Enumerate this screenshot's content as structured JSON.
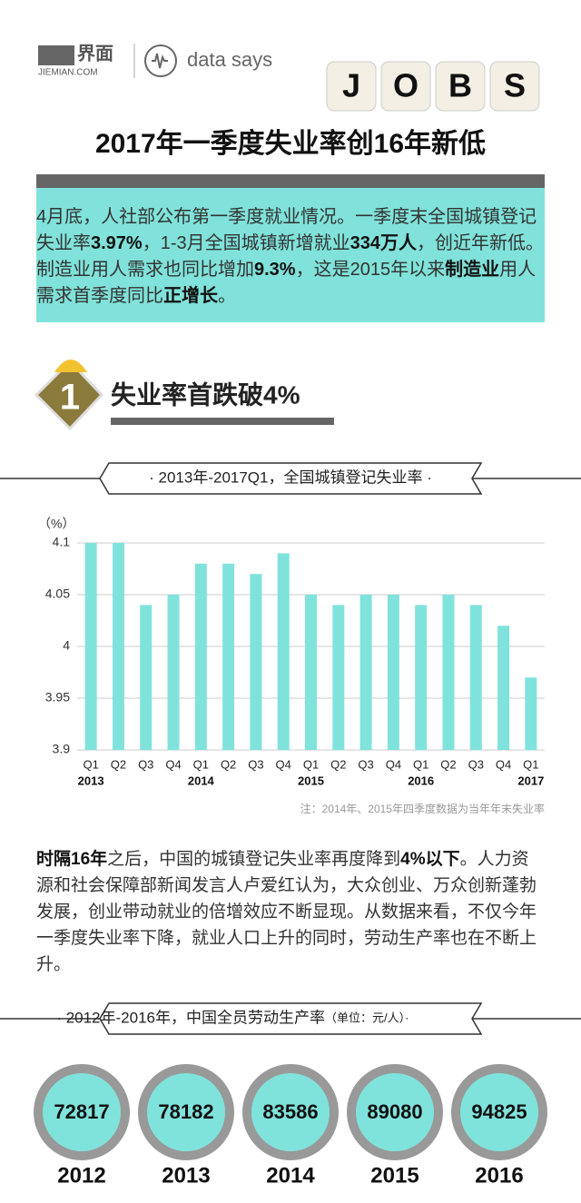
{
  "header": {
    "logo_cn": "界面",
    "logo_en": "JIEMIAN.COM",
    "tagline": "data says",
    "jobs_letters": [
      "J",
      "O",
      "B",
      "S"
    ]
  },
  "title": "2017年一季度失业率创16年新低",
  "intro": [
    {
      "text": "4月底，人社部公布第一季度就业情况。一季度末全国城镇登记失业率",
      "bold": false
    },
    {
      "text": "3.97%",
      "bold": true
    },
    {
      "text": "，1-3月全国城镇新增就业",
      "bold": false
    },
    {
      "text": "334万人",
      "bold": true
    },
    {
      "text": "，创近年新低。制造业用人需求也同比增加",
      "bold": false
    },
    {
      "text": "9.3%",
      "bold": true
    },
    {
      "text": "，这是2015年以来",
      "bold": false
    },
    {
      "text": "制造业",
      "bold": true
    },
    {
      "text": "用人需求首季度同比",
      "bold": false
    },
    {
      "text": "正增长",
      "bold": true
    },
    {
      "text": "。",
      "bold": false
    }
  ],
  "section": {
    "number": "1",
    "heading": "失业率首跌破4%"
  },
  "paragraph": [
    {
      "text": "时隔16年",
      "bold": true
    },
    {
      "text": "之后，中国的城镇登记失业率再度降到",
      "bold": false
    },
    {
      "text": "4%以下",
      "bold": true
    },
    {
      "text": "。人力资源和社会保障部新闻发言人卢爱红认为，大众创业、万众创新蓬勃发展，创业带动就业的倍增效应不断显现。从数据来看，不仅今年一季度失业率下降，就业人口上升的同时，劳动生产率也在不断上升。",
      "bold": false
    }
  ],
  "chart_data": [
    {
      "type": "bar",
      "title": "· 2013年-2017Q1，全国城镇登记失业率 ·",
      "ylabel": "（%）",
      "categories": [
        "Q1",
        "Q2",
        "Q3",
        "Q4",
        "Q1",
        "Q2",
        "Q3",
        "Q4",
        "Q1",
        "Q2",
        "Q3",
        "Q4",
        "Q1",
        "Q2",
        "Q3",
        "Q4",
        "Q1"
      ],
      "years": [
        "2013",
        null,
        null,
        null,
        "2014",
        null,
        null,
        null,
        "2015",
        null,
        null,
        null,
        "2016",
        null,
        null,
        null,
        "2017"
      ],
      "values": [
        4.1,
        4.1,
        4.04,
        4.05,
        4.08,
        4.08,
        4.07,
        4.09,
        4.05,
        4.04,
        4.05,
        4.05,
        4.04,
        4.05,
        4.04,
        4.02,
        3.97
      ],
      "color": "#7fe3dc",
      "ylim": [
        3.9,
        4.1
      ],
      "yticks": [
        3.9,
        3.95,
        4,
        4.05,
        4.1
      ],
      "grid": true,
      "note": "注：2014年、2015年四季度数据为当年年末失业率"
    },
    {
      "type": "circles",
      "title": "· 2012年-2016年，中国全员劳动生产率",
      "subtitle": "（单位：元/人）·",
      "categories": [
        "2012",
        "2013",
        "2014",
        "2015",
        "2016"
      ],
      "values": [
        72817,
        78182,
        83586,
        89080,
        94825
      ],
      "color": "#7fe3dc"
    }
  ]
}
